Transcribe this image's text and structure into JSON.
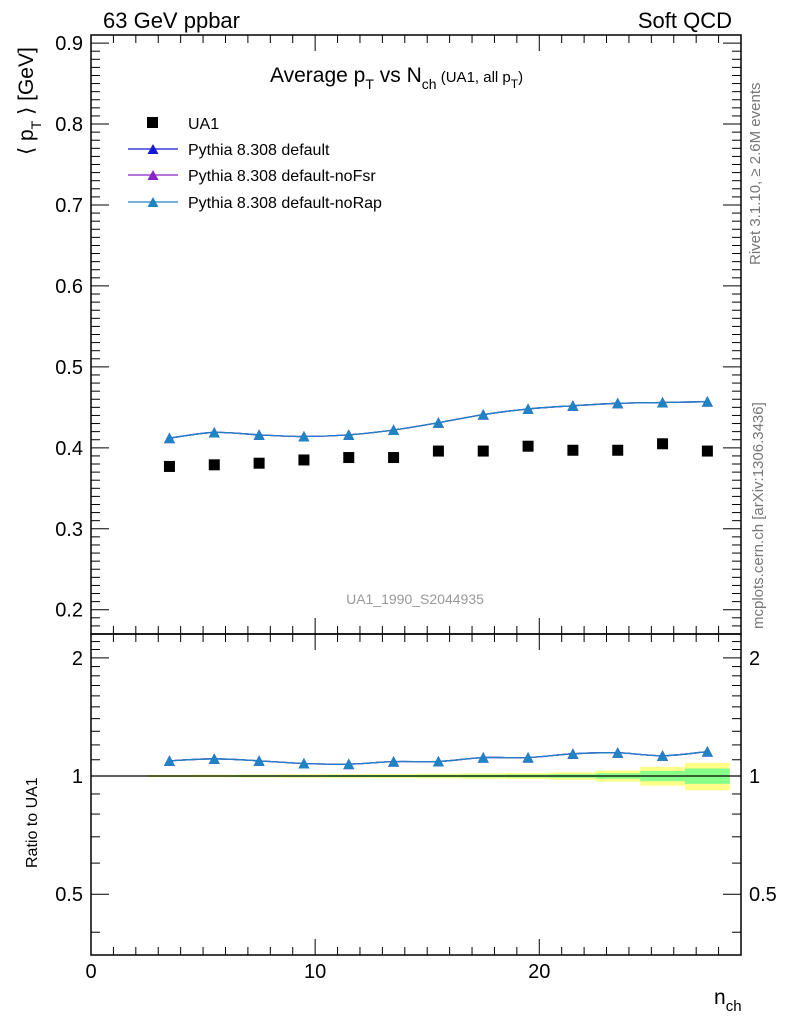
{
  "header": {
    "left": "63 GeV ppbar",
    "right": "Soft QCD"
  },
  "side_text": {
    "rivet": "Rivet 3.1.10, ≥ 2.6M events",
    "mcplots": "mcplots.cern.ch [arXiv:1306.3436]"
  },
  "chart_data": {
    "type": "scatter",
    "title": {
      "main": "Average p",
      "sub1": "T",
      "mid": " vs N",
      "sub2": "ch",
      "tail": " (UA1, all p",
      "sub3": "T",
      "close": ")"
    },
    "watermark": "UA1_1990_S2044935",
    "xlabel": {
      "main": "n",
      "sub": "ch"
    },
    "ylabel": {
      "open": "⟨ p",
      "sub": "T",
      "close": " ⟩ [GeV]"
    },
    "ratio_ylabel": "Ratio to UA1",
    "xlim": [
      0,
      29
    ],
    "ylim": [
      0.17,
      0.91
    ],
    "ratio_ylim": [
      0.35,
      2.3
    ],
    "x_ticks": [
      "0",
      "10",
      "20"
    ],
    "y_ticks": [
      "0.2",
      "0.3",
      "0.4",
      "0.5",
      "0.6",
      "0.7",
      "0.8",
      "0.9"
    ],
    "ratio_ticks": [
      "0.5",
      "1",
      "2"
    ],
    "x": [
      3.5,
      5.5,
      7.5,
      9.5,
      11.5,
      13.5,
      15.5,
      17.5,
      19.5,
      21.5,
      23.5,
      25.5,
      27.5
    ],
    "data": {
      "name": "UA1",
      "values": [
        0.377,
        0.379,
        0.381,
        0.385,
        0.388,
        0.388,
        0.396,
        0.396,
        0.402,
        0.397,
        0.397,
        0.405,
        0.396
      ],
      "ratio_band_inner": [
        0.004,
        0.004,
        0.005,
        0.005,
        0.006,
        0.006,
        0.007,
        0.008,
        0.009,
        0.011,
        0.016,
        0.03,
        0.045
      ],
      "ratio_band_outer": [
        0.007,
        0.008,
        0.009,
        0.01,
        0.011,
        0.012,
        0.014,
        0.016,
        0.018,
        0.022,
        0.032,
        0.055,
        0.08
      ]
    },
    "series": [
      {
        "name": "Pythia 8.308 default",
        "color": "#1616d6",
        "values": [
          0.412,
          0.419,
          0.416,
          0.414,
          0.416,
          0.422,
          0.431,
          0.441,
          0.448,
          0.452,
          0.455,
          0.456,
          0.457
        ],
        "ratio": [
          1.093,
          1.106,
          1.093,
          1.076,
          1.072,
          1.088,
          1.089,
          1.114,
          1.114,
          1.139,
          1.146,
          1.126,
          1.154
        ]
      },
      {
        "name": "Pythia 8.308 default-noFsr",
        "color": "#8a22c6",
        "values": [
          0.412,
          0.419,
          0.416,
          0.414,
          0.416,
          0.422,
          0.431,
          0.441,
          0.448,
          0.452,
          0.455,
          0.456,
          0.457
        ],
        "ratio": [
          1.093,
          1.106,
          1.093,
          1.076,
          1.072,
          1.088,
          1.089,
          1.114,
          1.114,
          1.139,
          1.146,
          1.126,
          1.154
        ]
      },
      {
        "name": "Pythia 8.308 default-noRap",
        "color": "#1f84c4",
        "values": [
          0.412,
          0.419,
          0.416,
          0.414,
          0.416,
          0.422,
          0.431,
          0.441,
          0.448,
          0.452,
          0.455,
          0.456,
          0.457
        ],
        "ratio": [
          1.093,
          1.106,
          1.093,
          1.076,
          1.072,
          1.088,
          1.089,
          1.114,
          1.114,
          1.139,
          1.146,
          1.126,
          1.154
        ]
      }
    ],
    "ratio_band_colors": {
      "outer": "#ffff88",
      "inner": "#88ff88"
    },
    "legend_position": "top-left"
  }
}
